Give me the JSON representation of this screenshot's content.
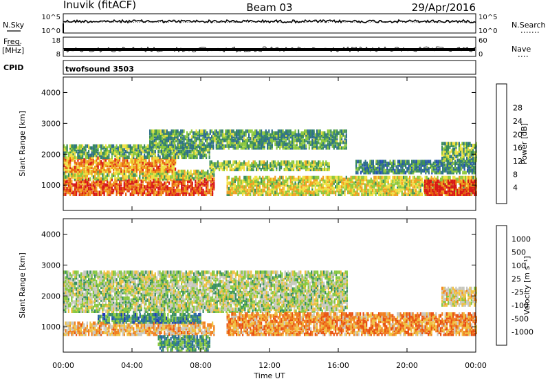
{
  "header": {
    "station": "Inuvik (fitACF)",
    "beam": "Beam 03",
    "date": "29/Apr/2016"
  },
  "top_strips": {
    "nsky_label": "N.Sky",
    "nsky_ticks": [
      "10^5",
      "10^0"
    ],
    "nsearch_label": "N.Search",
    "nsearch_ticks": [
      "10^5",
      "10^0"
    ],
    "freq_label": "Freq.",
    "freq_unit": "[MHz]",
    "freq_ticks": [
      "18",
      "8"
    ],
    "nave_label": "Nave",
    "nave_ticks": [
      "60",
      "0"
    ],
    "cpid_label": "CPID",
    "cpid_value": "twofsound 3503"
  },
  "chart_data": [
    {
      "type": "heatmap",
      "name": "power",
      "ylabel": "Slant Range [km]",
      "ylim": [
        180,
        4500
      ],
      "yticks": [
        1000,
        2000,
        3000,
        4000
      ],
      "ytick_labels": [
        "1000",
        "2000",
        "3000",
        "4000"
      ],
      "xlim": [
        0,
        24
      ],
      "colorbar_label": "Power [dB]",
      "colorbar_ticks": [
        "4",
        "8",
        "12",
        "16",
        "20",
        "24",
        "28"
      ],
      "colorbar_colors": [
        "#1a1aff",
        "#2450b4",
        "#2e6e8c",
        "#3a8c5a",
        "#8cc83c",
        "#f0e040",
        "#f0a020",
        "#e86010",
        "#d81818"
      ],
      "bands": [
        {
          "t0": 0.0,
          "t1": 8.8,
          "r0": 700,
          "r1": 1200,
          "level": 0.85
        },
        {
          "t0": 0.0,
          "t1": 8.8,
          "r0": 1200,
          "r1": 1500,
          "level": 0.55
        },
        {
          "t0": 0.0,
          "t1": 6.5,
          "r0": 1450,
          "r1": 1900,
          "level": 0.75
        },
        {
          "t0": 0.0,
          "t1": 8.5,
          "r0": 1900,
          "r1": 2300,
          "level": 0.45
        },
        {
          "t0": 5.0,
          "t1": 16.5,
          "r0": 2200,
          "r1": 2800,
          "level": 0.4
        },
        {
          "t0": 8.5,
          "t1": 15.5,
          "r0": 1500,
          "r1": 1800,
          "level": 0.5
        },
        {
          "t0": 9.5,
          "t1": 24.0,
          "r0": 700,
          "r1": 1250,
          "level": 0.6
        },
        {
          "t0": 17.0,
          "t1": 24.0,
          "r0": 1400,
          "r1": 1800,
          "level": 0.35
        },
        {
          "t0": 21.0,
          "t1": 24.0,
          "r0": 700,
          "r1": 1150,
          "level": 0.9
        },
        {
          "t0": 22.0,
          "t1": 24.0,
          "r0": 1800,
          "r1": 2400,
          "level": 0.45
        }
      ]
    },
    {
      "type": "heatmap",
      "name": "velocity",
      "ylabel": "Slant Range [km]",
      "ylim": [
        180,
        4500
      ],
      "yticks": [
        1000,
        2000,
        3000,
        4000
      ],
      "ytick_labels": [
        "1000",
        "2000",
        "3000",
        "4000"
      ],
      "xlim": [
        0,
        24
      ],
      "xticks": [
        0,
        4,
        8,
        12,
        16,
        20,
        24
      ],
      "xtick_labels": [
        "00:00",
        "04:00",
        "08:00",
        "12:00",
        "16:00",
        "20:00",
        "00:00"
      ],
      "xlabel": "Time UT",
      "colorbar_label": "Velocity [m s⁻¹]",
      "colorbar_ticks": [
        "1000",
        "500",
        "100",
        "25",
        "-25",
        "-100",
        "-500",
        "-1000"
      ],
      "colorbar_colors": [
        "#2038b8",
        "#2a6ea0",
        "#3a9060",
        "#88c840",
        "#c8c8c0",
        "#f0c040",
        "#f08020",
        "#e85010",
        "#d81818"
      ],
      "bands": [
        {
          "t0": 0.0,
          "t1": 8.8,
          "r0": 750,
          "r1": 1150,
          "level": 0.62
        },
        {
          "t0": 2.0,
          "t1": 8.0,
          "r0": 1150,
          "r1": 1400,
          "level": 0.25
        },
        {
          "t0": 0.0,
          "t1": 16.5,
          "r0": 1500,
          "r1": 2800,
          "level": 0.45
        },
        {
          "t0": 9.5,
          "t1": 24.0,
          "r0": 750,
          "r1": 1450,
          "level": 0.7
        },
        {
          "t0": 22.0,
          "t1": 24.0,
          "r0": 1700,
          "r1": 2300,
          "level": 0.55
        },
        {
          "t0": 5.5,
          "t1": 8.5,
          "r0": 250,
          "r1": 700,
          "level": 0.3
        }
      ]
    }
  ]
}
